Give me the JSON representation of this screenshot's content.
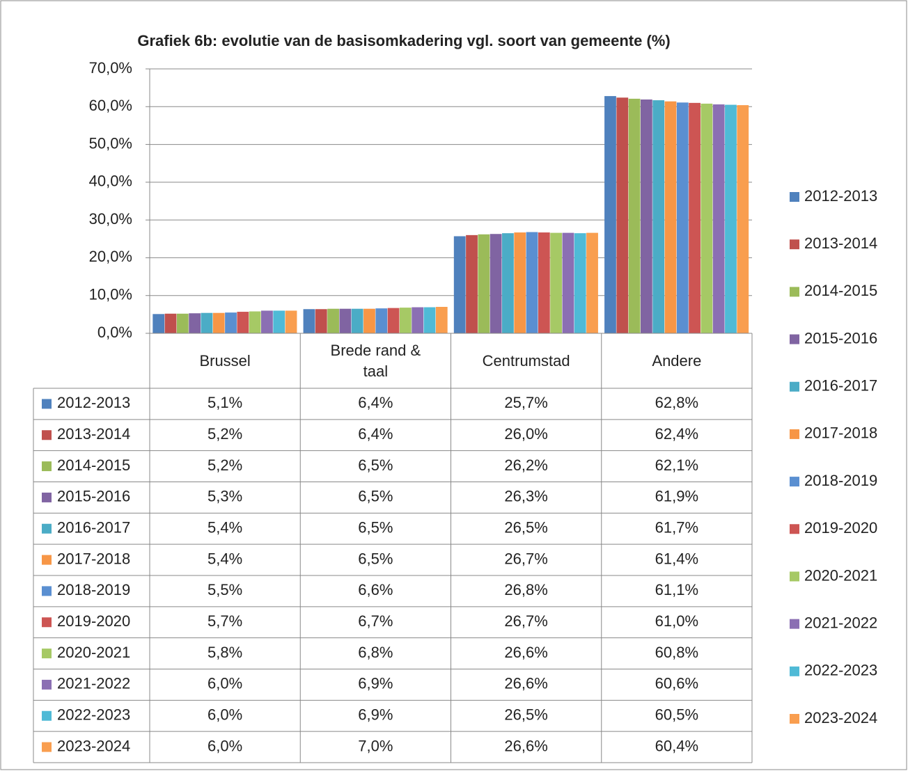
{
  "chart_data": {
    "type": "bar",
    "title": "Grafiek 6b: evolutie van de basisomkadering vgl. soort van gemeente (%)",
    "categories": [
      "Brussel",
      "Brede rand & taal",
      "Centrumstad",
      "Andere"
    ],
    "ylim": [
      0,
      70
    ],
    "yticks": [
      {
        "value": 0,
        "label": "0,0%"
      },
      {
        "value": 10,
        "label": "10,0%"
      },
      {
        "value": 20,
        "label": "20,0%"
      },
      {
        "value": 30,
        "label": "30,0%"
      },
      {
        "value": 40,
        "label": "40,0%"
      },
      {
        "value": 50,
        "label": "50,0%"
      },
      {
        "value": 60,
        "label": "60,0%"
      },
      {
        "value": 70,
        "label": "70,0%"
      }
    ],
    "grid": true,
    "legend": "right",
    "series": [
      {
        "name": "2012-2013",
        "color": "#4f81bd",
        "values": [
          5.1,
          6.4,
          25.7,
          62.8
        ],
        "value_labels": [
          "5,1%",
          "6,4%",
          "25,7%",
          "62,8%"
        ]
      },
      {
        "name": "2013-2014",
        "color": "#c0504d",
        "values": [
          5.2,
          6.4,
          26.0,
          62.4
        ],
        "value_labels": [
          "5,2%",
          "6,4%",
          "26,0%",
          "62,4%"
        ]
      },
      {
        "name": "2014-2015",
        "color": "#9bbb59",
        "values": [
          5.2,
          6.5,
          26.2,
          62.1
        ],
        "value_labels": [
          "5,2%",
          "6,5%",
          "26,2%",
          "62,1%"
        ]
      },
      {
        "name": "2015-2016",
        "color": "#8064a2",
        "values": [
          5.3,
          6.5,
          26.3,
          61.9
        ],
        "value_labels": [
          "5,3%",
          "6,5%",
          "26,3%",
          "61,9%"
        ]
      },
      {
        "name": "2016-2017",
        "color": "#4bacc6",
        "values": [
          5.4,
          6.5,
          26.5,
          61.7
        ],
        "value_labels": [
          "5,4%",
          "6,5%",
          "26,5%",
          "61,7%"
        ]
      },
      {
        "name": "2017-2018",
        "color": "#f79646",
        "values": [
          5.4,
          6.5,
          26.7,
          61.4
        ],
        "value_labels": [
          "5,4%",
          "6,5%",
          "26,7%",
          "61,4%"
        ]
      },
      {
        "name": "2018-2019",
        "color": "#5a8fd1",
        "values": [
          5.5,
          6.6,
          26.8,
          61.1
        ],
        "value_labels": [
          "5,5%",
          "6,6%",
          "26,8%",
          "61,1%"
        ]
      },
      {
        "name": "2019-2020",
        "color": "#cd5553",
        "values": [
          5.7,
          6.7,
          26.7,
          61.0
        ],
        "value_labels": [
          "5,7%",
          "6,7%",
          "26,7%",
          "61,0%"
        ]
      },
      {
        "name": "2020-2021",
        "color": "#a6c965",
        "values": [
          5.8,
          6.8,
          26.6,
          60.8
        ],
        "value_labels": [
          "5,8%",
          "6,8%",
          "26,6%",
          "60,8%"
        ]
      },
      {
        "name": "2021-2022",
        "color": "#8b6fb3",
        "values": [
          6.0,
          6.9,
          26.6,
          60.6
        ],
        "value_labels": [
          "6,0%",
          "6,9%",
          "26,6%",
          "60,6%"
        ]
      },
      {
        "name": "2022-2023",
        "color": "#4fbad6",
        "values": [
          6.0,
          6.9,
          26.5,
          60.5
        ],
        "value_labels": [
          "6,0%",
          "6,9%",
          "26,5%",
          "60,5%"
        ]
      },
      {
        "name": "2023-2024",
        "color": "#f99e4f",
        "values": [
          6.0,
          7.0,
          26.6,
          60.4
        ],
        "value_labels": [
          "6,0%",
          "7,0%",
          "26,6%",
          "60,4%"
        ]
      }
    ]
  }
}
